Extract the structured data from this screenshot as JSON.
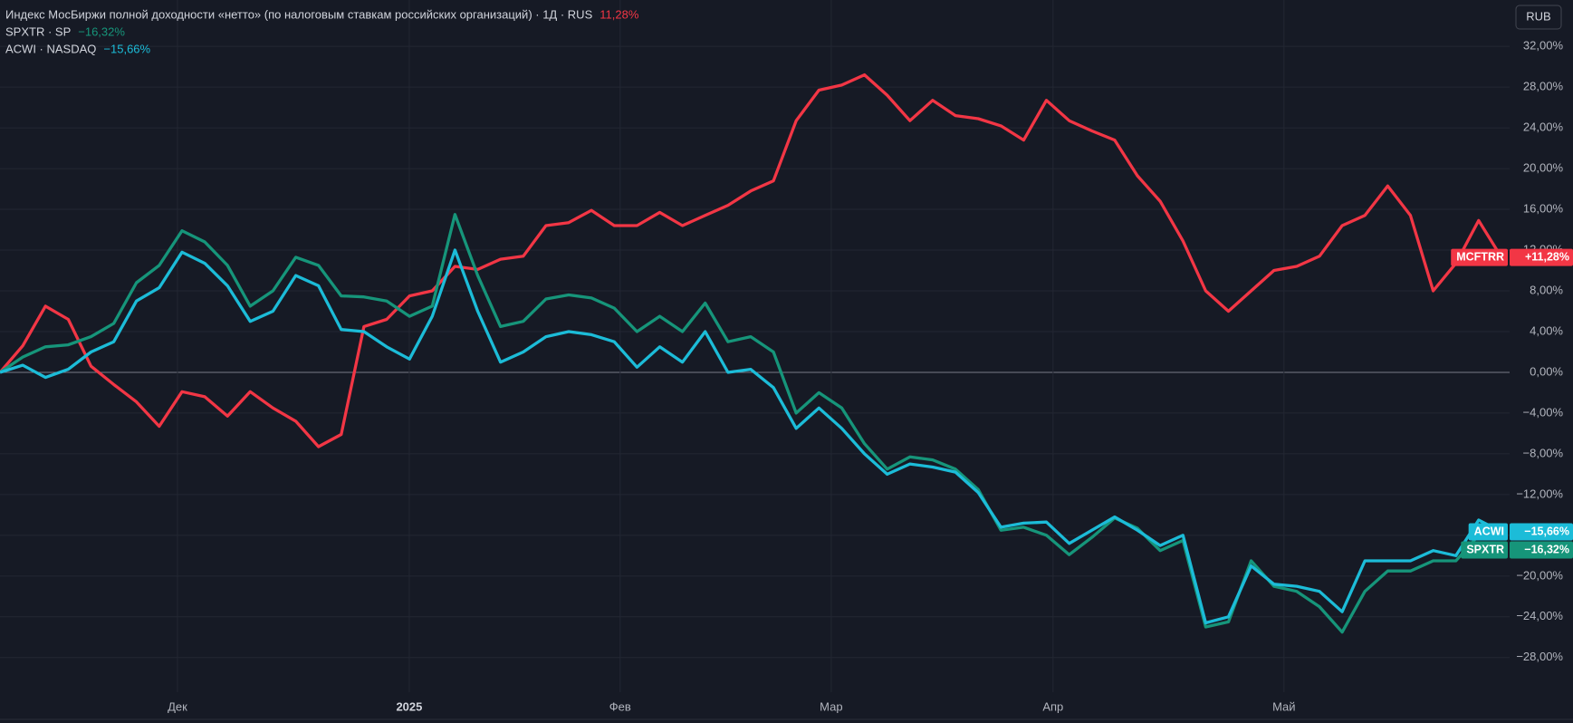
{
  "currency": "RUB",
  "chart_data": {
    "type": "line",
    "x": [
      0,
      1,
      2,
      3,
      4,
      5,
      6,
      7,
      8,
      9,
      10,
      11,
      12,
      13,
      14,
      15,
      16,
      17,
      18,
      19,
      20,
      21,
      22,
      23,
      24,
      25,
      26,
      27,
      28,
      29,
      30,
      31,
      32,
      33,
      34,
      35,
      36,
      37,
      38,
      39,
      40,
      41,
      42,
      43,
      44,
      45,
      46,
      47,
      48,
      49,
      50,
      51,
      52,
      53,
      54,
      55,
      56,
      57,
      58,
      59,
      60,
      61,
      62,
      63,
      64,
      65,
      66
    ],
    "xlim": [
      0,
      66.36
    ],
    "xticks": [
      {
        "value": 7.8,
        "label": "Дек"
      },
      {
        "value": 17.99,
        "label": "2025"
      },
      {
        "value": 27.26,
        "label": "Фев"
      },
      {
        "value": 36.54,
        "label": "Мар"
      },
      {
        "value": 46.29,
        "label": "Апр"
      },
      {
        "value": 56.44,
        "label": "Май"
      }
    ],
    "ylim": [
      -31.4,
      36.55
    ],
    "yticks": [
      {
        "value": 32,
        "label": "32,00%"
      },
      {
        "value": 28,
        "label": "28,00%"
      },
      {
        "value": 24,
        "label": "24,00%"
      },
      {
        "value": 20,
        "label": "20,00%"
      },
      {
        "value": 16,
        "label": "16,00%"
      },
      {
        "value": 12,
        "label": "12,00%"
      },
      {
        "value": 8,
        "label": "8,00%"
      },
      {
        "value": 4,
        "label": "4,00%"
      },
      {
        "value": 0,
        "label": "0,00%"
      },
      {
        "value": -4,
        "label": "−4,00%"
      },
      {
        "value": -8,
        "label": "−8,00%"
      },
      {
        "value": -12,
        "label": "−12,00%"
      },
      {
        "value": -16,
        "label": "−16,00%"
      },
      {
        "value": -20,
        "label": "−20,00%"
      },
      {
        "value": -24,
        "label": "−24,00%"
      },
      {
        "value": -28,
        "label": "−28,00%"
      }
    ],
    "grid": true,
    "series": [
      {
        "name": "MCFTRR",
        "legend": "Индекс МосБиржи полной доходности «нетто» (по налоговым ставкам российских организаций) · 1Д · RUS",
        "legend_value": "11,28%",
        "tag_value": "+11,28%",
        "color": "#f23645",
        "values": [
          0,
          2.6,
          6.5,
          5.2,
          0.6,
          -1.2,
          -2.9,
          -5.3,
          -1.9,
          -2.4,
          -4.3,
          -1.9,
          -3.5,
          -4.8,
          -7.3,
          -6.1,
          4.5,
          5.2,
          7.5,
          8.0,
          10.4,
          10.1,
          11.1,
          11.4,
          14.4,
          14.7,
          15.9,
          14.4,
          14.4,
          15.7,
          14.4,
          15.4,
          16.4,
          17.8,
          18.8,
          24.7,
          27.7,
          28.2,
          29.2,
          27.2,
          24.7,
          26.7,
          25.2,
          24.9,
          24.2,
          22.8,
          26.7,
          24.7,
          23.7,
          22.8,
          19.3,
          16.8,
          12.9,
          8.0,
          6.0,
          8.0,
          10.0,
          10.4,
          11.4,
          14.4,
          15.4,
          18.3,
          15.4,
          8.0,
          10.7,
          14.9,
          11.28
        ]
      },
      {
        "name": "SPXTR",
        "legend": "SPXTR · SP",
        "legend_value": "−16,32%",
        "tag_value": "−16,32%",
        "color": "#16957a",
        "values": [
          0,
          1.5,
          2.5,
          2.7,
          3.5,
          4.8,
          8.8,
          10.5,
          13.9,
          12.8,
          10.5,
          6.5,
          8.0,
          11.3,
          10.5,
          7.5,
          7.4,
          7.0,
          5.5,
          6.5,
          15.5,
          9.5,
          4.5,
          5.0,
          7.2,
          7.6,
          7.3,
          6.3,
          4.0,
          5.5,
          4.0,
          6.8,
          3.0,
          3.5,
          2.0,
          -4.0,
          -2.0,
          -3.5,
          -7.0,
          -9.5,
          -8.3,
          -8.6,
          -9.5,
          -11.5,
          -15.5,
          -15.2,
          -16.0,
          -17.9,
          -16.2,
          -14.3,
          -15.3,
          -17.5,
          -16.5,
          -25.0,
          -24.5,
          -18.5,
          -21.0,
          -21.5,
          -23.0,
          -25.5,
          -21.5,
          -19.5,
          -19.5,
          -18.5,
          -18.5,
          -16.0,
          -16.32
        ]
      },
      {
        "name": "ACWI",
        "legend": "ACWI · NASDAQ",
        "legend_value": "−15,66%",
        "tag_value": "−15,66%",
        "color": "#1cbcd8",
        "values": [
          0,
          0.7,
          -0.5,
          0.3,
          2.0,
          3.0,
          7.0,
          8.3,
          11.8,
          10.7,
          8.5,
          5.0,
          6.0,
          9.5,
          8.5,
          4.2,
          4.0,
          2.5,
          1.3,
          5.5,
          12.0,
          6.0,
          1.0,
          2.0,
          3.5,
          4.0,
          3.7,
          3.0,
          0.5,
          2.5,
          1.0,
          4.0,
          0.0,
          0.3,
          -1.5,
          -5.5,
          -3.5,
          -5.5,
          -8.0,
          -10.0,
          -9.0,
          -9.3,
          -9.8,
          -11.8,
          -15.2,
          -14.8,
          -14.7,
          -16.8,
          -15.5,
          -14.2,
          -15.5,
          -17.0,
          -16.0,
          -24.6,
          -24.0,
          -19.0,
          -20.8,
          -21.0,
          -21.5,
          -23.5,
          -18.5,
          -18.5,
          -18.5,
          -17.5,
          -18.0,
          -14.5,
          -15.66
        ]
      }
    ]
  }
}
